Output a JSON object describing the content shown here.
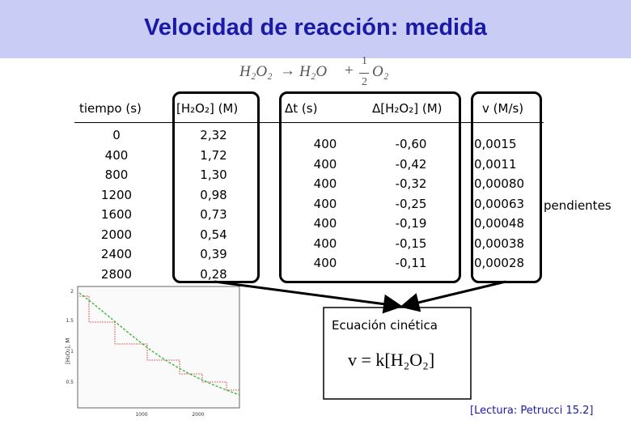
{
  "title": "Velocidad de reacción: medida",
  "equation": {
    "reactant": "H₂O₂",
    "arrow": "→",
    "product1": "H₂O",
    "plus": "+",
    "frac_num": "1",
    "frac_den": "2",
    "product2": "O₂"
  },
  "headers": {
    "time": "tiempo (s)",
    "conc": "[H₂O₂] (M)",
    "dt": "Δt (s)",
    "dconc": "Δ[H₂O₂] (M)",
    "rate": "v (M/s)"
  },
  "columns": {
    "time": [
      "0",
      "400",
      "800",
      "1200",
      "1600",
      "2000",
      "2400",
      "2800"
    ],
    "conc": [
      "2,32",
      "1,72",
      "1,30",
      "0,98",
      "0,73",
      "0,54",
      "0,39",
      "0,28"
    ],
    "dt": [
      "400",
      "400",
      "400",
      "400",
      "400",
      "400",
      "400"
    ],
    "dconc": [
      "-0,60",
      "-0,42",
      "-0,32",
      "-0,25",
      "-0,19",
      "-0,15",
      "-0,11"
    ],
    "rate": [
      "0,0015",
      "0,0011",
      "0,00080",
      "0,00063",
      "0,00048",
      "0,00038",
      "0,00028"
    ]
  },
  "side_label": "pendientes",
  "kinetic": {
    "title": "Ecuación cinética",
    "equation": "v = k[H₂O₂]"
  },
  "reference": "[Lectura: Petrucci 15.2]",
  "graph": {
    "ylabel": "[H₂O₂], M",
    "ytick_labels": [
      "2",
      "1.5",
      "1",
      "0.5"
    ],
    "xtick_labels": [
      "1000",
      "2000"
    ],
    "curve_color": "#3cb83c",
    "step_color": "#d04040"
  }
}
